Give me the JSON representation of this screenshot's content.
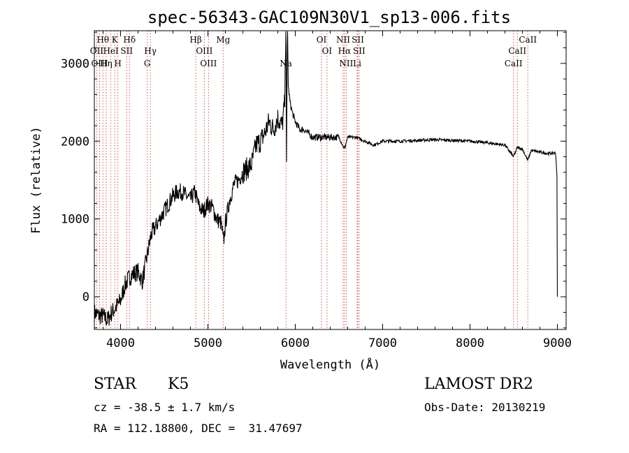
{
  "chart_data": {
    "type": "line",
    "title": "spec-56343-GAC109N30V1_sp13-006.fits",
    "xlabel": "Wavelength (Å)",
    "ylabel": "Flux (relative)",
    "xlim": [
      3700,
      9100
    ],
    "ylim": [
      -420,
      3420
    ],
    "x_ticks": [
      4000,
      5000,
      6000,
      7000,
      8000,
      9000
    ],
    "y_ticks": [
      0,
      1000,
      2000,
      3000
    ],
    "x_tick_labels": [
      "4000",
      "5000",
      "6000",
      "7000",
      "8000",
      "9000"
    ],
    "y_tick_labels": [
      "0",
      "1000",
      "2000",
      "3000"
    ],
    "grid": false,
    "series": [
      {
        "x": [
          3700,
          3750,
          3800,
          3850,
          3900,
          3950,
          4000,
          4050,
          4100,
          4150,
          4200,
          4250,
          4300,
          4350,
          4400,
          4450,
          4500,
          4550,
          4600,
          4650,
          4700,
          4750,
          4800,
          4850,
          4900,
          4950,
          5000,
          5050,
          5100,
          5150,
          5180,
          5200,
          5250,
          5300,
          5350,
          5400,
          5450,
          5500,
          5550,
          5600,
          5650,
          5700,
          5750,
          5800,
          5850,
          5880,
          5893,
          5900,
          5910,
          5920,
          5940,
          5970,
          6000,
          6050,
          6100,
          6150,
          6200,
          6300,
          6400,
          6500,
          6563,
          6600,
          6700,
          6800,
          6900,
          7000,
          7200,
          7400,
          7600,
          7800,
          8000,
          8200,
          8400,
          8498,
          8542,
          8600,
          8662,
          8700,
          8800,
          8900,
          8980,
          8995,
          9000
        ],
        "y": [
          -200,
          -240,
          -250,
          -300,
          -200,
          -130,
          -50,
          150,
          250,
          300,
          320,
          200,
          500,
          800,
          900,
          1000,
          1100,
          1200,
          1300,
          1350,
          1350,
          1300,
          1250,
          1350,
          1150,
          1100,
          1200,
          1150,
          1000,
          950,
          700,
          950,
          1250,
          1450,
          1500,
          1600,
          1650,
          1700,
          1950,
          2000,
          2100,
          2250,
          2150,
          2300,
          2200,
          2500,
          3650,
          1700,
          3600,
          2700,
          2500,
          2350,
          2250,
          2150,
          2150,
          2100,
          2050,
          2050,
          2050,
          2050,
          1900,
          2050,
          2050,
          2000,
          1950,
          2000,
          2000,
          2010,
          2020,
          2010,
          2000,
          1980,
          1950,
          1800,
          1920,
          1900,
          1750,
          1880,
          1860,
          1840,
          1850,
          1550,
          0
        ]
      }
    ],
    "spectral_lines": [
      {
        "label": "Hθ",
        "wl": 3798,
        "row": 1
      },
      {
        "label": "OII",
        "wl": 3727,
        "row": 2
      },
      {
        "label": "OIII",
        "wl": 3760,
        "row": 3
      },
      {
        "label": "Hη",
        "wl": 3835,
        "row": 3
      },
      {
        "label": "K",
        "wl": 3934,
        "row": 1
      },
      {
        "label": "HeI",
        "wl": 3889,
        "row": 2
      },
      {
        "label": "H",
        "wl": 3969,
        "row": 3
      },
      {
        "label": "Hδ",
        "wl": 4102,
        "row": 1
      },
      {
        "label": "SII",
        "wl": 4070,
        "row": 2
      },
      {
        "label": "Hγ",
        "wl": 4341,
        "row": 2
      },
      {
        "label": "G",
        "wl": 4305,
        "row": 3
      },
      {
        "label": "Hβ",
        "wl": 4861,
        "row": 1
      },
      {
        "label": "OIII",
        "wl": 4959,
        "row": 2
      },
      {
        "label": "OIII",
        "wl": 5007,
        "row": 3
      },
      {
        "label": "Mg",
        "wl": 5175,
        "row": 1
      },
      {
        "label": "Na",
        "wl": 5893,
        "row": 3
      },
      {
        "label": "OI",
        "wl": 6300,
        "row": 1
      },
      {
        "label": "OI",
        "wl": 6363,
        "row": 2
      },
      {
        "label": "NII",
        "wl": 6548,
        "row": 1
      },
      {
        "label": "Hα",
        "wl": 6563,
        "row": 2
      },
      {
        "label": "NII",
        "wl": 6583,
        "row": 3
      },
      {
        "label": "SII",
        "wl": 6716,
        "row": 1
      },
      {
        "label": "SII",
        "wl": 6731,
        "row": 2
      },
      {
        "label": "Li",
        "wl": 6708,
        "row": 3
      },
      {
        "label": "CaII",
        "wl": 8662,
        "row": 1
      },
      {
        "label": "CaII",
        "wl": 8542,
        "row": 2
      },
      {
        "label": "CaII",
        "wl": 8498,
        "row": 3
      }
    ],
    "line_marker_color": "#d9534f"
  },
  "info": {
    "object_class": "STAR",
    "subclass": "K5",
    "survey": "LAMOST DR2",
    "velocity": "cz = -38.5 ± 1.7 km/s",
    "obs_date": "Obs-Date: 20130219",
    "coords": "RA = 112.18800, DEC =  31.47697"
  }
}
